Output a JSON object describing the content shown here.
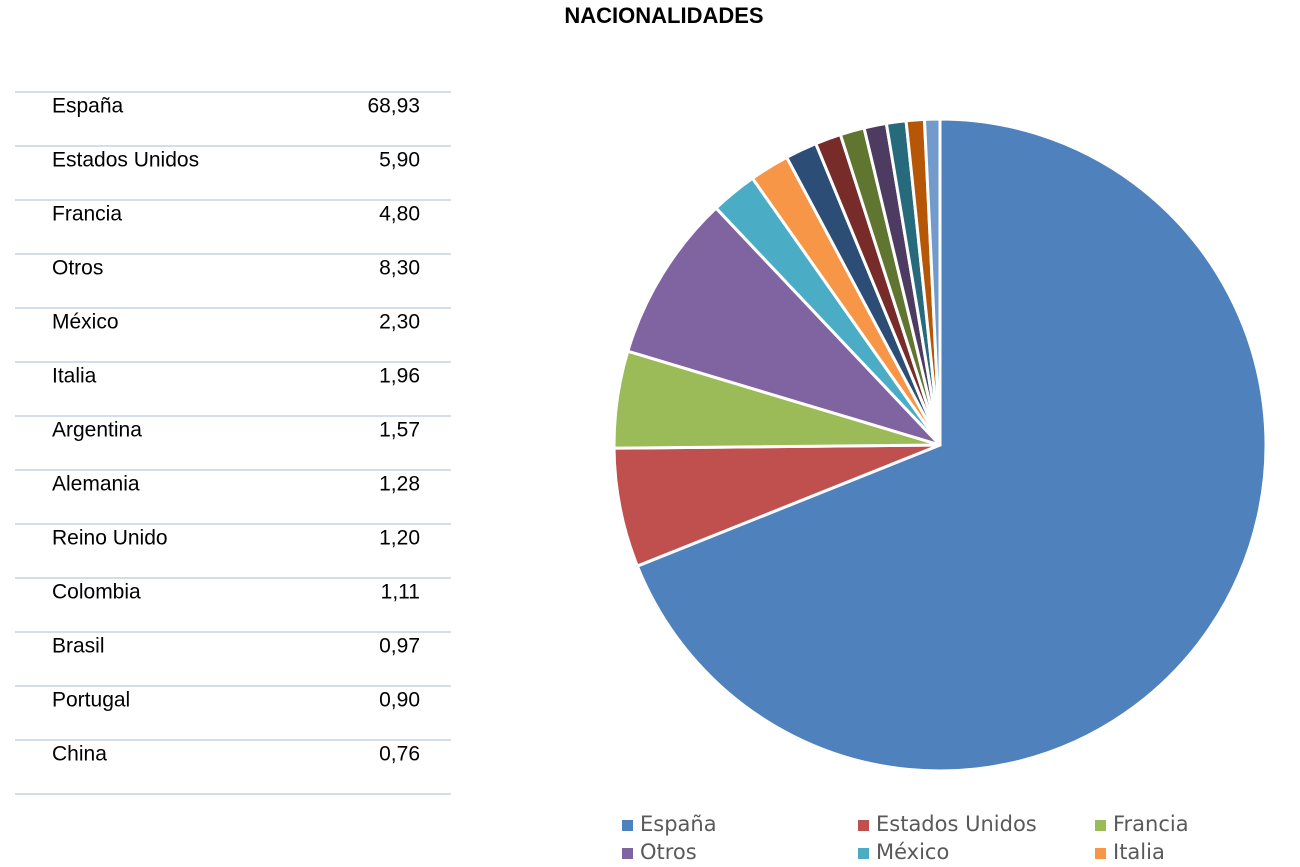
{
  "chart_data": {
    "type": "pie",
    "title": "NACIONALIDADES",
    "categories": [
      "España",
      "Estados Unidos",
      "Francia",
      "Otros",
      "México",
      "Italia",
      "Argentina",
      "Alemania",
      "Reino Unido",
      "Colombia",
      "Brasil",
      "Portugal",
      "China"
    ],
    "values": [
      68.93,
      5.9,
      4.8,
      8.3,
      2.3,
      1.96,
      1.57,
      1.28,
      1.2,
      1.11,
      0.97,
      0.9,
      0.76
    ],
    "value_labels": [
      "68,93",
      "5,90",
      "4,80",
      "8,30",
      "2,30",
      "1,96",
      "1,57",
      "1,28",
      "1,20",
      "1,11",
      "0,97",
      "0,90",
      "0,76"
    ],
    "colors": [
      "#4f81bd",
      "#c0504d",
      "#9bbb59",
      "#8064a2",
      "#4bacc6",
      "#f79646",
      "#2c4d75",
      "#772c2a",
      "#5f7530",
      "#4d3b62",
      "#276a7c",
      "#b65708",
      "#729aca"
    ]
  }
}
